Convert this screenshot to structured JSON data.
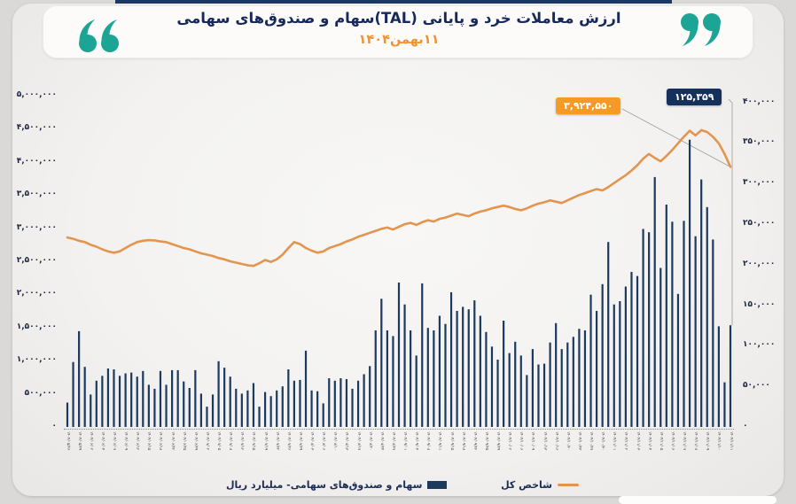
{
  "header": {
    "title": "ارزش معاملات خرد و پایانی (TAL)سهام و صندوق‌های سهامی",
    "date": "۱۱بهمن۱۴۰۴"
  },
  "colors": {
    "bars": "#1c3a5e",
    "line": "#e2954e",
    "title_navy": "#17295a",
    "date_orange": "#f0932f",
    "quote_teal": "#1ca595",
    "callout_line_bg": "#f59b25",
    "callout_bar_bg": "#16305c"
  },
  "legend": {
    "bars_label": "سهام و صندوق‌های سهامی- میلیارد ریال",
    "line_label": "شاخص کل"
  },
  "callouts": {
    "line_end": "۳,۹۲۴,۵۵۰",
    "bar_end": "۱۲۵,۳۵۹"
  },
  "chart_data": {
    "type": "bar",
    "title": "ارزش معاملات خرد و پایانی (TAL)سهام و صندوق‌های سهامی - ۱۱بهمن۱۴۰۴",
    "grid": false,
    "legend_position": "bottom",
    "left_axis": {
      "min": 0,
      "max": 5000000,
      "ticks": [
        "۵,۰۰۰,۰۰۰",
        "۴,۵۰۰,۰۰۰",
        "۴,۰۰۰,۰۰۰",
        "۳,۵۰۰,۰۰۰",
        "۳,۰۰۰,۰۰۰",
        "۲,۵۰۰,۰۰۰",
        "۲,۰۰۰,۰۰۰",
        "۱,۵۰۰,۰۰۰",
        "۱,۰۰۰,۰۰۰",
        "۵۰۰,۰۰۰",
        "۰"
      ]
    },
    "right_axis": {
      "min": 0,
      "max": 400000,
      "ticks": [
        "۴۰۰,۰۰۰",
        "۳۵۰,۰۰۰",
        "۳۰۰,۰۰۰",
        "۲۵۰,۰۰۰",
        "۲۰۰,۰۰۰",
        "۱۵۰,۰۰۰",
        "۱۰۰,۰۰۰",
        "۵۰,۰۰۰",
        "۰"
      ]
    },
    "x_labels": [
      "۱۴۰۴/۰۵/۲۶",
      "۱۴۰۴/۰۵/۲۹",
      "۱۴۰۴/۰۶/۰۲",
      "۱۴۰۴/۰۶/۰۴",
      "۱۴۰۴/۰۶/۰۷",
      "۱۴۰۴/۰۶/۰۹",
      "۱۴۰۴/۰۶/۱۲",
      "۱۴۰۴/۰۶/۱۵",
      "۱۴۰۴/۰۶/۱۸",
      "۱۴۰۴/۰۶/۲۲",
      "۱۴۰۴/۰۶/۲۵",
      "۱۴۰۴/۰۶/۲۹",
      "۱۴۰۴/۰۷/۰۲",
      "۱۴۰۴/۰۷/۰۵",
      "۱۴۰۴/۰۷/۰۸",
      "۱۴۰۴/۰۷/۱۲",
      "۱۴۰۴/۰۷/۱۵",
      "۱۴۰۴/۰۷/۱۹",
      "۱۴۰۴/۰۷/۲۲",
      "۱۴۰۴/۰۷/۲۶",
      "۱۴۰۴/۰۷/۲۹",
      "۱۴۰۴/۰۸/۰۳",
      "۱۴۰۴/۰۸/۰۶",
      "۱۴۰۴/۰۸/۱۰",
      "۱۴۰۴/۰۸/۱۳",
      "۱۴۰۴/۰۸/۱۷",
      "۱۴۰۴/۰۸/۲۰",
      "۱۴۰۴/۰۸/۲۴",
      "۱۴۰۴/۰۸/۲۷",
      "۱۴۰۴/۰۹/۰۱",
      "۱۴۰۴/۰۹/۰۴",
      "۱۴۰۴/۰۹/۰۸",
      "۱۴۰۴/۰۹/۱۱",
      "۱۴۰۴/۰۹/۱۵",
      "۱۴۰۴/۰۹/۱۸",
      "۱۴۰۴/۰۹/۲۲",
      "۱۴۰۴/۰۹/۲۵",
      "۱۴۰۴/۰۹/۲۹",
      "۱۴۰۴/۱۰/۰۲",
      "۱۴۰۴/۱۰/۰۶",
      "۱۴۰۴/۱۰/۰۹",
      "۱۴۰۴/۱۰/۱۳",
      "۱۴۰۴/۱۰/۱۶",
      "۱۴۰۴/۱۰/۲۰",
      "۱۴۰۴/۱۰/۲۳",
      "۱۴۰۴/۱۰/۲۷",
      "۱۴۰۴/۱۰/۳۰",
      "۱۴۰۴/۱۱/۰۱",
      "۱۴۰۴/۱۱/۰۲",
      "۱۴۰۴/۱۱/۰۳",
      "۱۴۰۴/۱۱/۰۴",
      "۱۴۰۴/۱۱/۰۵",
      "۱۴۰۴/۱۱/۰۶",
      "۱۴۰۴/۱۱/۰۷",
      "۱۴۰۴/۱۱/۰۸",
      "۱۴۰۴/۱۱/۰۹",
      "۱۴۰۴/۱۱/۱۰",
      "۱۴۰۴/۱۱/۱۱"
    ],
    "series": [
      {
        "name": "سهام و صندوق‌های سهامی- میلیارد ریال",
        "type": "bar",
        "axis": "right",
        "color": "#1c3a5e",
        "values": [
          30000,
          80000,
          118000,
          74000,
          40000,
          57000,
          63000,
          72000,
          71000,
          63000,
          66000,
          67000,
          62000,
          69000,
          52000,
          47000,
          69000,
          52000,
          70000,
          70000,
          56000,
          48000,
          70000,
          41000,
          25000,
          40000,
          81000,
          73000,
          62000,
          47000,
          41000,
          45000,
          54000,
          25000,
          43000,
          38000,
          45000,
          50000,
          71000,
          57000,
          58000,
          94000,
          45000,
          44000,
          29000,
          60000,
          57000,
          60000,
          59000,
          47000,
          57000,
          65000,
          75000,
          119000,
          158000,
          119000,
          112000,
          178000,
          151000,
          119000,
          88000,
          177000,
          122000,
          119000,
          137000,
          127000,
          166000,
          143000,
          148000,
          145000,
          156000,
          137000,
          117000,
          99000,
          83000,
          131000,
          91000,
          105000,
          88000,
          64000,
          96000,
          77000,
          78000,
          104000,
          128000,
          96000,
          104000,
          111000,
          121000,
          119000,
          163000,
          143000,
          176000,
          228000,
          151000,
          155000,
          173000,
          191000,
          186000,
          244000,
          240000,
          308000,
          196000,
          274000,
          253000,
          164000,
          254000,
          354000,
          235000,
          305000,
          271000,
          231000,
          124000,
          55000,
          125359
        ]
      },
      {
        "name": "شاخص کل",
        "type": "line",
        "axis": "left",
        "color": "#e2954e",
        "values": [
          2860000,
          2840000,
          2810000,
          2790000,
          2750000,
          2720000,
          2680000,
          2650000,
          2630000,
          2650000,
          2700000,
          2750000,
          2790000,
          2810000,
          2820000,
          2815000,
          2800000,
          2790000,
          2760000,
          2730000,
          2700000,
          2680000,
          2650000,
          2620000,
          2600000,
          2580000,
          2550000,
          2530000,
          2500000,
          2480000,
          2460000,
          2440000,
          2430000,
          2470000,
          2520000,
          2490000,
          2530000,
          2600000,
          2700000,
          2790000,
          2760000,
          2700000,
          2660000,
          2630000,
          2650000,
          2700000,
          2730000,
          2760000,
          2800000,
          2830000,
          2870000,
          2900000,
          2930000,
          2960000,
          2990000,
          3010000,
          2980000,
          3020000,
          3060000,
          3080000,
          3050000,
          3090000,
          3120000,
          3100000,
          3140000,
          3160000,
          3190000,
          3220000,
          3200000,
          3180000,
          3220000,
          3250000,
          3270000,
          3300000,
          3320000,
          3340000,
          3320000,
          3290000,
          3270000,
          3300000,
          3340000,
          3370000,
          3390000,
          3420000,
          3400000,
          3380000,
          3420000,
          3460000,
          3500000,
          3530000,
          3560000,
          3590000,
          3570000,
          3620000,
          3680000,
          3740000,
          3800000,
          3870000,
          3950000,
          4050000,
          4120000,
          4060000,
          4010000,
          4090000,
          4180000,
          4280000,
          4380000,
          4470000,
          4400000,
          4480000,
          4450000,
          4380000,
          4280000,
          4120000,
          3924550
        ]
      }
    ],
    "annotations": [
      {
        "target": "line_last_point",
        "text": "۳,۹۲۴,۵۵۰",
        "value": 3924550
      },
      {
        "target": "bar_last_point",
        "text": "۱۲۵,۳۵۹",
        "value": 125359
      }
    ]
  }
}
